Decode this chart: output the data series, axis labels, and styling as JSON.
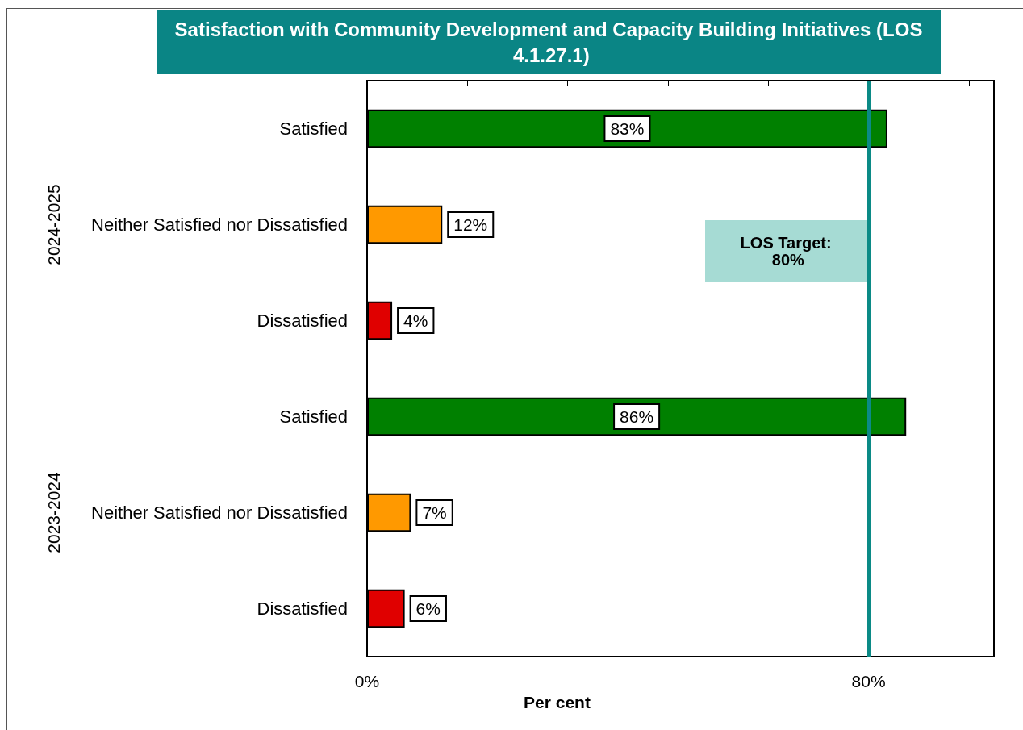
{
  "chart_data": {
    "type": "bar",
    "orientation": "horizontal",
    "title": "Satisfaction with Community Development and Capacity Building Initiatives (LOS 4.1.27.1)",
    "xlabel": "Per cent",
    "categories": [
      "Satisfied",
      "Neither Satisfied nor Dissatisfied",
      "Dissatisfied",
      "Satisfied",
      "Neither Satisfied nor Dissatisfied",
      "Dissatisfied"
    ],
    "values": [
      83,
      12,
      4,
      86,
      7,
      6
    ],
    "colors": [
      "#008000",
      "#ff9900",
      "#e00000",
      "#008000",
      "#ff9900",
      "#e00000"
    ],
    "value_labels": [
      "83%",
      "12%",
      "4%",
      "86%",
      "7%",
      "6%"
    ],
    "annotations": [
      "2024-2025",
      "2023-2024"
    ],
    "xlim": [
      0,
      100
    ],
    "xticks": [
      {
        "value": 0,
        "label": "0%"
      },
      {
        "value": 16,
        "label": null
      },
      {
        "value": 32,
        "label": null
      },
      {
        "value": 48,
        "label": null
      },
      {
        "value": 64,
        "label": null
      },
      {
        "value": 80,
        "label": "80%"
      },
      {
        "value": 96,
        "label": null
      }
    ],
    "ref_lines": [
      {
        "axis": "x",
        "value": 80,
        "label": "LOS Target: 80%",
        "color": "#0b8a86",
        "line_style": "solid"
      }
    ],
    "grid": false
  }
}
